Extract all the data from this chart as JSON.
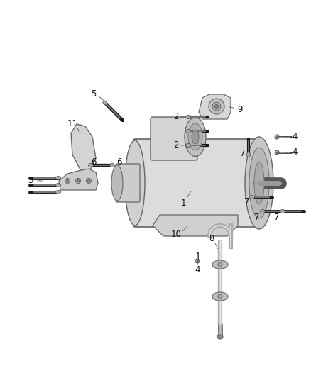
{
  "bg_color": "#ffffff",
  "fig_width": 4.38,
  "fig_height": 5.33,
  "dpi": 100,
  "label_color": "#222222",
  "line_color": "#444444",
  "part_edge": "#555555",
  "part_fill": "#e8e8e8",
  "part_fill2": "#d0d0d0",
  "bolt_dark": "#222222",
  "bolt_mid": "#888888",
  "bolt_light": "#cccccc"
}
